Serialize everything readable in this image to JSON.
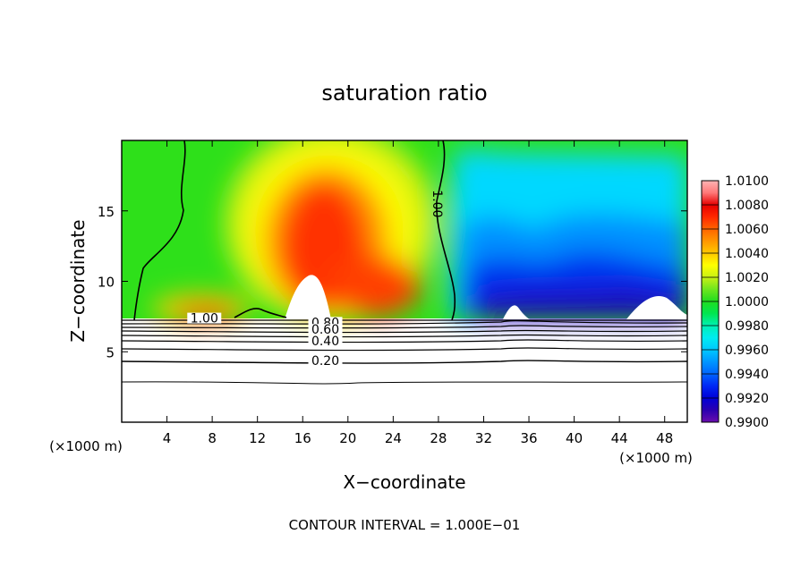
{
  "chart_data": {
    "type": "heatmap",
    "title": "saturation ratio",
    "xlabel": "X−coordinate",
    "ylabel": "Z−coordinate",
    "x_unit": "(×1000 m)",
    "y_unit": "(×1000 m)",
    "xlim": [
      0,
      50
    ],
    "ylim": [
      0,
      20
    ],
    "x_ticks": [
      4,
      8,
      12,
      16,
      20,
      24,
      28,
      32,
      36,
      40,
      44,
      48
    ],
    "y_ticks": [
      5,
      10,
      15
    ],
    "colorbar": {
      "min": 0.99,
      "max": 1.01,
      "levels": [
        0.99,
        0.991,
        0.992,
        0.993,
        0.994,
        0.995,
        0.996,
        0.997,
        0.998,
        0.999,
        1.0,
        1.001,
        1.002,
        1.003,
        1.004,
        1.005,
        1.006,
        1.007,
        1.008,
        1.009,
        1.01
      ],
      "tick_labels": [
        "1.0100",
        "1.0080",
        "1.0060",
        "1.0040",
        "1.0020",
        "1.0000",
        "0.9980",
        "0.9960",
        "0.9940",
        "0.9920",
        "0.9900"
      ],
      "colors": [
        "#6a0dad",
        "#2a00b0",
        "#0000d8",
        "#0028f5",
        "#0064ff",
        "#0096ff",
        "#00c8ff",
        "#00ecf0",
        "#00f0b4",
        "#00e650",
        "#20dc20",
        "#6ee61e",
        "#c8f014",
        "#ffff00",
        "#ffc800",
        "#ff9600",
        "#ff6400",
        "#ff2800",
        "#e60000",
        "#ff7878",
        "#ffb4b4"
      ]
    },
    "contour_labels": [
      {
        "text": "1.00",
        "x": 7.3,
        "z": 7.2
      },
      {
        "text": "1.00",
        "x": 27.7,
        "z": 15.5
      },
      {
        "text": "0.80",
        "x": 18.0,
        "z": 6.9
      },
      {
        "text": "0.60",
        "x": 18.0,
        "z": 6.4
      },
      {
        "text": "0.40",
        "x": 18.0,
        "z": 5.6
      },
      {
        "text": "0.20",
        "x": 18.0,
        "z": 4.2
      }
    ],
    "contour_interval_text": "CONTOUR INTERVAL = 1.000E−01"
  }
}
